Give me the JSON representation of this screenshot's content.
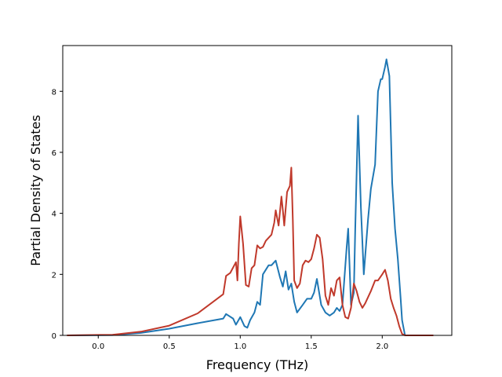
{
  "chart_data": {
    "type": "line",
    "title": "",
    "xlabel": "Frequency (THz)",
    "ylabel": "Partial Density of States",
    "xlim": [
      -0.25,
      2.49
    ],
    "ylim": [
      0,
      9.5
    ],
    "xticks": [
      0.0,
      0.5,
      1.0,
      1.5,
      2.0
    ],
    "xtick_labels": [
      "0.0",
      "0.5",
      "1.0",
      "1.5",
      "2.0"
    ],
    "yticks": [
      0,
      2,
      4,
      6,
      8
    ],
    "ytick_labels": [
      "0",
      "2",
      "4",
      "6",
      "8"
    ],
    "grid": false,
    "legend": "none",
    "series": [
      {
        "color": "#1f77b4",
        "x": [
          -0.22,
          0.1,
          0.3,
          0.5,
          0.7,
          0.88,
          0.9,
          0.95,
          0.97,
          1.0,
          1.03,
          1.05,
          1.07,
          1.1,
          1.12,
          1.14,
          1.16,
          1.2,
          1.22,
          1.25,
          1.28,
          1.3,
          1.32,
          1.34,
          1.36,
          1.38,
          1.4,
          1.44,
          1.47,
          1.5,
          1.52,
          1.54,
          1.57,
          1.6,
          1.63,
          1.66,
          1.68,
          1.7,
          1.72,
          1.75,
          1.76,
          1.78,
          1.8,
          1.81,
          1.83,
          1.85,
          1.87,
          1.9,
          1.92,
          1.95,
          1.97,
          1.99,
          2.0,
          2.02,
          2.03,
          2.05,
          2.07,
          2.09,
          2.11,
          2.13,
          2.14,
          2.16,
          2.36
        ],
        "y": [
          0.0,
          0.01,
          0.08,
          0.22,
          0.4,
          0.55,
          0.7,
          0.55,
          0.35,
          0.6,
          0.3,
          0.25,
          0.5,
          0.75,
          1.1,
          1.0,
          2.0,
          2.3,
          2.3,
          2.45,
          1.9,
          1.6,
          2.1,
          1.5,
          1.7,
          1.1,
          0.75,
          1.0,
          1.2,
          1.2,
          1.4,
          1.85,
          1.0,
          0.75,
          0.65,
          0.75,
          0.9,
          0.8,
          1.0,
          2.9,
          3.5,
          1.0,
          1.4,
          3.5,
          7.2,
          4.2,
          2.0,
          3.8,
          4.8,
          5.6,
          8.0,
          8.4,
          8.4,
          8.8,
          9.05,
          8.5,
          5.0,
          3.5,
          2.5,
          1.2,
          0.5,
          0.0,
          0.0
        ]
      },
      {
        "color": "#c0392b",
        "x": [
          -0.22,
          0.1,
          0.3,
          0.5,
          0.7,
          0.88,
          0.9,
          0.93,
          0.97,
          0.98,
          0.99,
          1.0,
          1.02,
          1.04,
          1.06,
          1.08,
          1.1,
          1.12,
          1.14,
          1.16,
          1.18,
          1.2,
          1.22,
          1.24,
          1.25,
          1.27,
          1.29,
          1.3,
          1.31,
          1.33,
          1.35,
          1.36,
          1.37,
          1.38,
          1.4,
          1.42,
          1.44,
          1.46,
          1.48,
          1.5,
          1.52,
          1.54,
          1.56,
          1.58,
          1.6,
          1.62,
          1.64,
          1.66,
          1.68,
          1.7,
          1.72,
          1.74,
          1.76,
          1.78,
          1.8,
          1.82,
          1.84,
          1.86,
          1.88,
          1.9,
          1.92,
          1.95,
          1.97,
          2.0,
          2.02,
          2.04,
          2.06,
          2.08,
          2.1,
          2.12,
          2.14,
          2.16,
          2.36
        ],
        "y": [
          0.0,
          0.02,
          0.12,
          0.32,
          0.72,
          1.35,
          1.95,
          2.05,
          2.4,
          1.8,
          3.0,
          3.9,
          3.0,
          1.65,
          1.6,
          2.2,
          2.3,
          2.95,
          2.85,
          2.9,
          3.1,
          3.2,
          3.3,
          3.7,
          4.1,
          3.6,
          4.55,
          4.1,
          3.6,
          4.7,
          4.9,
          5.5,
          3.8,
          1.8,
          1.55,
          1.7,
          2.3,
          2.45,
          2.4,
          2.5,
          2.85,
          3.3,
          3.2,
          2.5,
          1.3,
          1.0,
          1.55,
          1.3,
          1.8,
          1.9,
          1.0,
          0.6,
          0.55,
          0.9,
          1.7,
          1.45,
          1.1,
          0.9,
          1.05,
          1.25,
          1.45,
          1.8,
          1.8,
          2.0,
          2.15,
          1.8,
          1.2,
          0.9,
          0.65,
          0.3,
          0.05,
          0.0,
          0.0
        ]
      }
    ]
  }
}
